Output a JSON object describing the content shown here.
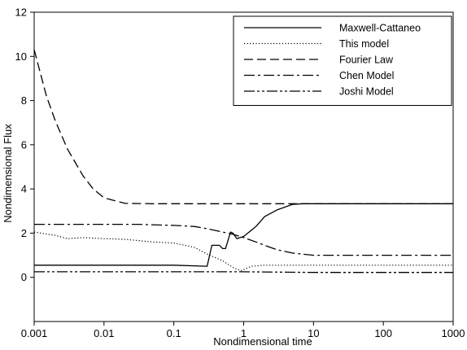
{
  "chart_data": {
    "type": "line",
    "title": "",
    "xlabel": "Nondimensional time",
    "ylabel": "Nondimensional Flux",
    "x_scale": "log",
    "xlim": [
      0.001,
      1000
    ],
    "ylim": [
      -2,
      12
    ],
    "x_ticks": [
      "0.001",
      "0.01",
      "0.1",
      "1",
      "10",
      "100",
      "1000"
    ],
    "y_ticks": [
      "0",
      "2",
      "4",
      "6",
      "8",
      "10",
      "12"
    ],
    "grid": false,
    "legend_position": "top-right",
    "series": [
      {
        "name": "Maxwell-Cattaneo",
        "style": "solid",
        "x": [
          0.001,
          0.01,
          0.1,
          0.3,
          0.35,
          0.45,
          0.5,
          0.55,
          0.65,
          0.7,
          0.8,
          1,
          1.5,
          2,
          3,
          5,
          7,
          10,
          100,
          1000
        ],
        "y": [
          0.55,
          0.55,
          0.55,
          0.5,
          1.45,
          1.45,
          1.3,
          1.3,
          2.05,
          2.0,
          1.75,
          1.85,
          2.3,
          2.75,
          3.05,
          3.3,
          3.33,
          3.33,
          3.33,
          3.33
        ]
      },
      {
        "name": "This model",
        "style": "dotted",
        "x": [
          0.001,
          0.002,
          0.003,
          0.005,
          0.01,
          0.02,
          0.05,
          0.1,
          0.2,
          0.3,
          0.5,
          0.7,
          0.9,
          1,
          1.3,
          2,
          3,
          10,
          100,
          1000
        ],
        "y": [
          2.05,
          1.9,
          1.75,
          1.8,
          1.75,
          1.72,
          1.6,
          1.55,
          1.35,
          1.05,
          0.75,
          0.45,
          0.3,
          0.35,
          0.5,
          0.55,
          0.55,
          0.55,
          0.55,
          0.55
        ]
      },
      {
        "name": "Fourier Law",
        "style": "dashed",
        "x": [
          0.001,
          0.0015,
          0.002,
          0.003,
          0.005,
          0.007,
          0.01,
          0.015,
          0.02,
          0.05,
          0.1,
          1,
          10,
          100,
          1000
        ],
        "y": [
          10.3,
          8.2,
          7.1,
          5.8,
          4.6,
          4.0,
          3.6,
          3.45,
          3.35,
          3.33,
          3.33,
          3.33,
          3.33,
          3.33,
          3.33
        ]
      },
      {
        "name": "Chen Model",
        "style": "dashdot",
        "x": [
          0.001,
          0.01,
          0.03,
          0.1,
          0.2,
          0.3,
          0.5,
          0.7,
          1,
          1.5,
          2,
          3,
          5,
          10,
          100,
          1000
        ],
        "y": [
          2.4,
          2.4,
          2.4,
          2.35,
          2.3,
          2.2,
          2.05,
          1.95,
          1.8,
          1.6,
          1.45,
          1.25,
          1.1,
          1.0,
          1.0,
          1.0
        ]
      },
      {
        "name": "Joshi Model",
        "style": "dashdotdot",
        "x": [
          0.001,
          0.01,
          0.1,
          1,
          10,
          100,
          1000
        ],
        "y": [
          0.25,
          0.25,
          0.25,
          0.25,
          0.22,
          0.22,
          0.22
        ]
      }
    ]
  }
}
